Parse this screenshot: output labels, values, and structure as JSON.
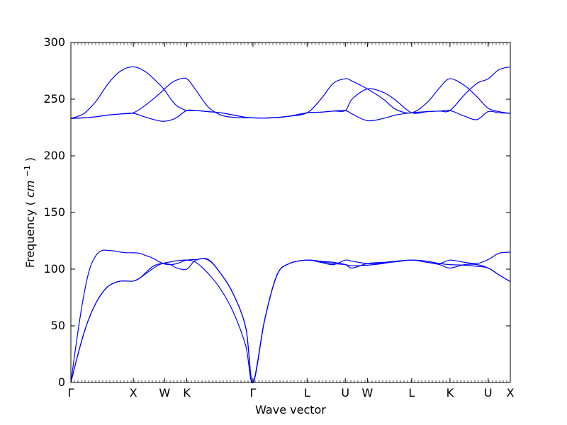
{
  "chart_data": {
    "type": "line",
    "title": "",
    "xlabel": "Wave vector",
    "ylabel": "Frequency",
    "ylabel_unit": "cm",
    "ylabel_unit_exp": "−1",
    "ylim": [
      0,
      300
    ],
    "yticks": [
      0,
      50,
      100,
      150,
      200,
      250,
      300
    ],
    "x_ticks": [
      {
        "label": "Γ",
        "x": 0.0
      },
      {
        "label": "X",
        "x": 1.0
      },
      {
        "label": "W",
        "x": 1.5
      },
      {
        "label": "K",
        "x": 1.854
      },
      {
        "label": "Γ",
        "x": 2.914
      },
      {
        "label": "L",
        "x": 3.78
      },
      {
        "label": "U",
        "x": 4.392
      },
      {
        "label": "W",
        "x": 4.746
      },
      {
        "label": "L",
        "x": 5.454
      },
      {
        "label": "K",
        "x": 6.066
      },
      {
        "label": "U",
        "x": 6.678
      },
      {
        "label": "X",
        "x": 7.032
      }
    ],
    "xlim": [
      0,
      7.032
    ],
    "grid": false,
    "line_color": "#0000ff",
    "series": [
      {
        "x": [
          0,
          0.1,
          0.2,
          0.3,
          0.4,
          0.5,
          0.6,
          0.7,
          0.8,
          0.9,
          1.0,
          1.1,
          1.2,
          1.3,
          1.4,
          1.5,
          1.6,
          1.7,
          1.854,
          2.0,
          2.2,
          2.4,
          2.6,
          2.8,
          2.914,
          3.1,
          3.3,
          3.5,
          3.78,
          4.0,
          4.2,
          4.392,
          4.5,
          4.746,
          5.0,
          5.2,
          5.454,
          5.7,
          5.9,
          6.066,
          6.3,
          6.5,
          6.678,
          6.85,
          7.032
        ],
        "y": [
          0,
          22,
          42,
          58,
          70,
          79,
          85,
          88,
          89.5,
          89.5,
          89.5,
          92,
          96,
          100,
          103.5,
          105.5,
          106.5,
          107.5,
          108,
          106,
          96,
          82,
          62,
          32,
          0,
          55,
          95,
          105,
          108,
          106.5,
          105,
          104,
          103,
          103.5,
          105,
          107,
          108,
          106,
          104,
          101,
          104,
          104,
          101,
          95,
          89
        ]
      },
      {
        "x": [
          0,
          0.1,
          0.2,
          0.3,
          0.4,
          0.5,
          0.6,
          0.7,
          0.8,
          0.9,
          1.0,
          1.1,
          1.2,
          1.3,
          1.4,
          1.5,
          1.6,
          1.7,
          1.854,
          2.0,
          2.2,
          2.4,
          2.6,
          2.8,
          2.914,
          3.1,
          3.3,
          3.5,
          3.78,
          4.0,
          4.2,
          4.392,
          4.5,
          4.746,
          5.0,
          5.2,
          5.454,
          5.7,
          5.9,
          6.066,
          6.3,
          6.5,
          6.678,
          6.85,
          7.032
        ],
        "y": [
          0,
          22,
          42,
          58,
          70,
          79,
          85,
          88,
          89.5,
          89.5,
          89.5,
          92,
          97,
          102,
          104.5,
          105,
          104,
          101,
          100,
          108,
          108,
          96,
          78,
          48,
          0,
          55,
          95,
          105,
          108,
          107,
          106,
          104,
          101,
          105,
          106,
          107,
          108,
          107,
          105,
          104,
          103.5,
          102.5,
          101,
          95,
          89
        ]
      },
      {
        "x": [
          0,
          0.1,
          0.2,
          0.3,
          0.4,
          0.5,
          0.6,
          0.7,
          0.8,
          0.9,
          1.0,
          1.1,
          1.2,
          1.3,
          1.4,
          1.5,
          1.6,
          1.7,
          1.854,
          2.0,
          2.2,
          2.4,
          2.6,
          2.8,
          2.914,
          3.1,
          3.3,
          3.5,
          3.78,
          4.0,
          4.2,
          4.392,
          4.5,
          4.746,
          5.0,
          5.2,
          5.454,
          5.7,
          5.9,
          6.066,
          6.3,
          6.5,
          6.678,
          6.85,
          7.032
        ],
        "y": [
          0,
          40,
          75,
          100,
          112,
          116.5,
          116.5,
          116,
          115,
          114.5,
          114.5,
          114,
          112,
          110,
          107,
          104.5,
          104,
          105,
          108,
          108.5,
          108.5,
          96,
          78,
          48,
          0,
          55,
          95,
          105,
          108,
          106,
          104,
          108,
          107,
          105,
          105.5,
          106.5,
          108,
          107,
          105,
          108,
          106,
          105,
          108.5,
          114,
          115
        ]
      },
      {
        "x": [
          0,
          0.2,
          0.4,
          0.6,
          0.8,
          1.0,
          1.2,
          1.4,
          1.5,
          1.6,
          1.7,
          1.854,
          2.0,
          2.2,
          2.4,
          2.6,
          2.8,
          2.914,
          3.2,
          3.5,
          3.78,
          4.0,
          4.2,
          4.392,
          4.5,
          4.746,
          5.0,
          5.2,
          5.454,
          5.7,
          5.9,
          6.066,
          6.3,
          6.5,
          6.678,
          6.85,
          7.032
        ],
        "y": [
          233,
          233.5,
          234.5,
          236,
          237,
          237.5,
          234,
          231,
          230.5,
          231.5,
          234,
          240,
          240,
          239,
          238,
          236,
          234,
          233.5,
          233.5,
          235,
          238,
          238.5,
          239.5,
          240,
          237,
          231,
          233,
          236,
          238,
          239,
          239.5,
          240,
          235,
          232,
          239,
          238,
          237.5
        ]
      },
      {
        "x": [
          0,
          0.2,
          0.4,
          0.6,
          0.8,
          1.0,
          1.2,
          1.4,
          1.5,
          1.6,
          1.7,
          1.854,
          2.0,
          2.2,
          2.4,
          2.6,
          2.8,
          2.914,
          3.2,
          3.5,
          3.78,
          4.0,
          4.2,
          4.392,
          4.5,
          4.746,
          5.0,
          5.2,
          5.454,
          5.7,
          5.9,
          6.066,
          6.3,
          6.5,
          6.678,
          6.85,
          7.032
        ],
        "y": [
          233,
          233.5,
          234.5,
          236,
          237,
          238,
          245,
          254,
          259,
          264,
          267,
          268,
          258,
          243,
          236,
          234,
          233.5,
          233.5,
          233.5,
          235,
          238,
          250,
          264,
          268,
          266,
          259,
          250,
          241,
          238,
          247,
          260,
          268,
          262,
          252,
          242,
          239,
          237.5
        ]
      },
      {
        "x": [
          0,
          0.2,
          0.4,
          0.6,
          0.8,
          1.0,
          1.2,
          1.4,
          1.5,
          1.6,
          1.7,
          1.854,
          2.0,
          2.2,
          2.4,
          2.6,
          2.8,
          2.914,
          3.2,
          3.5,
          3.78,
          4.0,
          4.2,
          4.392,
          4.5,
          4.746,
          5.0,
          5.2,
          5.454,
          5.7,
          5.9,
          6.066,
          6.3,
          6.5,
          6.678,
          6.85,
          7.032
        ],
        "y": [
          233,
          237,
          248,
          264,
          275,
          278.5,
          274,
          264,
          258,
          250,
          244,
          240,
          240,
          239,
          238,
          236,
          234,
          233.5,
          233.5,
          235,
          238,
          238.5,
          239.5,
          240,
          250,
          259,
          256,
          249,
          238,
          239,
          239.5,
          240,
          254,
          264,
          268,
          276,
          278.5
        ]
      }
    ]
  }
}
